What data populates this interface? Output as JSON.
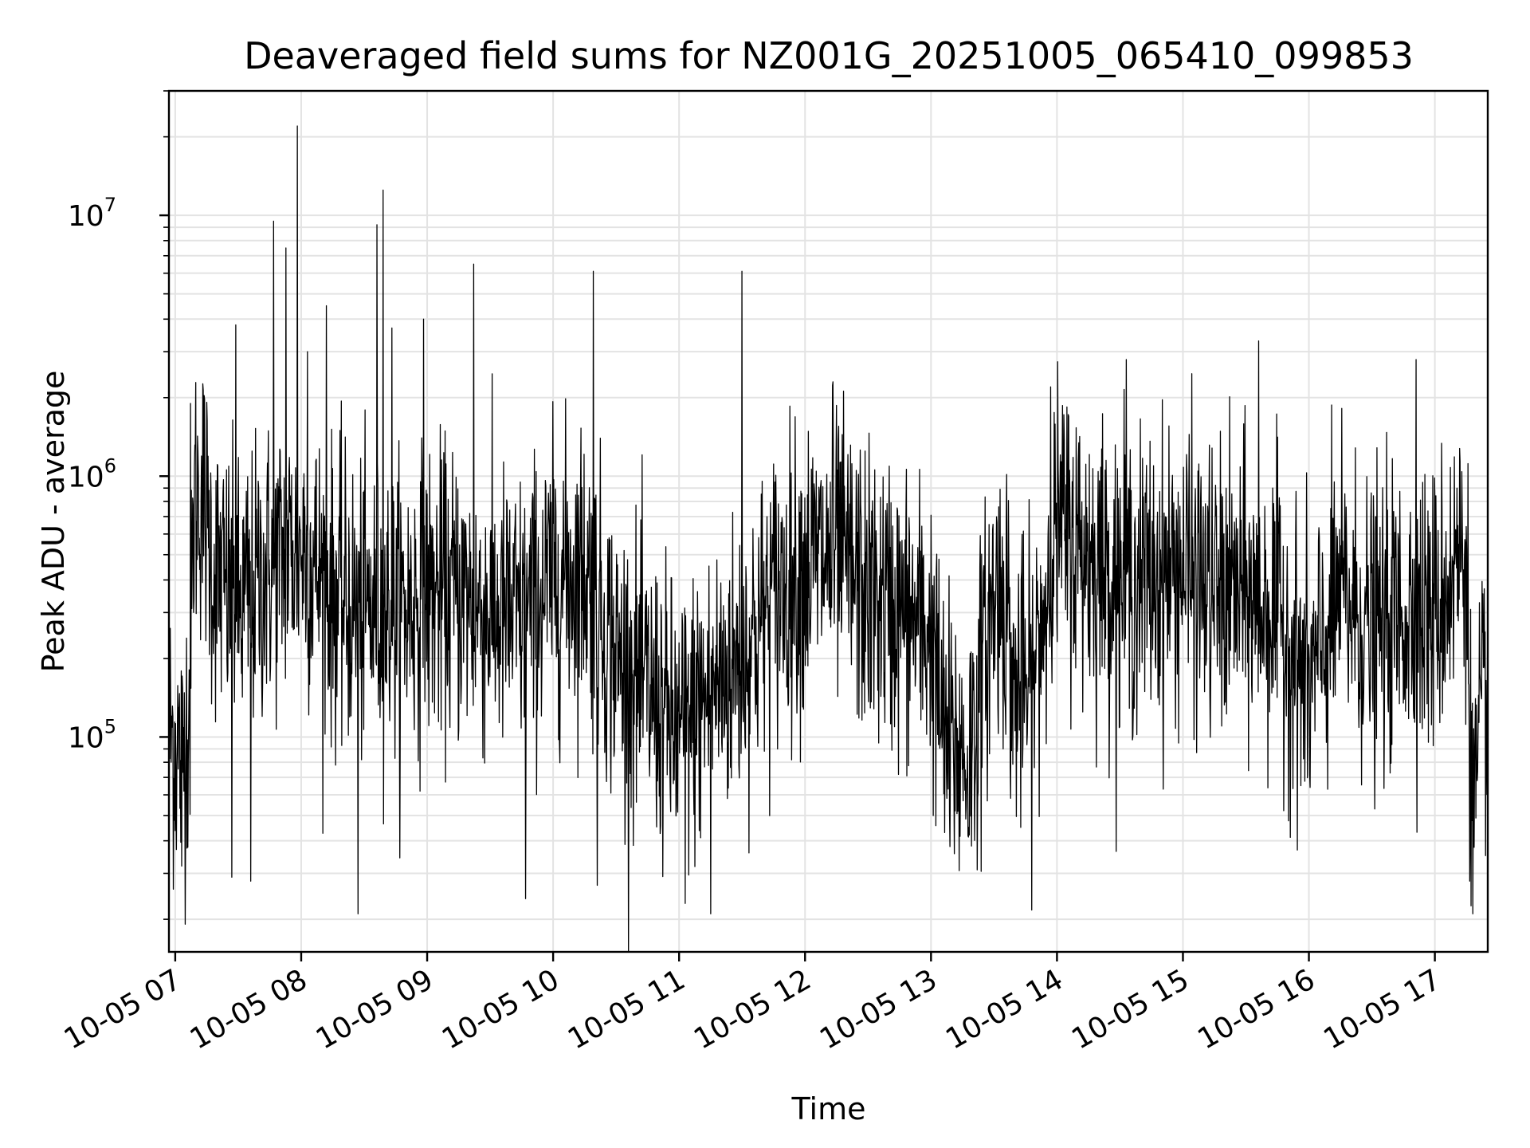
{
  "chart_data": {
    "type": "line",
    "title": "Deaveraged field sums for NZ001G_20251005_065410_099853",
    "xlabel": "Time",
    "ylabel": "Peak ADU - average",
    "yscale": "log",
    "ylim": [
      15000,
      30000000
    ],
    "xlim_hours": [
      6.95,
      17.42
    ],
    "grid": true,
    "line_color": "#000000",
    "x_ticks": [
      {
        "hour": 7,
        "label": "10-05 07"
      },
      {
        "hour": 8,
        "label": "10-05 08"
      },
      {
        "hour": 9,
        "label": "10-05 09"
      },
      {
        "hour": 10,
        "label": "10-05 10"
      },
      {
        "hour": 11,
        "label": "10-05 11"
      },
      {
        "hour": 12,
        "label": "10-05 12"
      },
      {
        "hour": 13,
        "label": "10-05 13"
      },
      {
        "hour": 14,
        "label": "10-05 14"
      },
      {
        "hour": 15,
        "label": "10-05 15"
      },
      {
        "hour": 16,
        "label": "10-05 16"
      },
      {
        "hour": 17,
        "label": "10-05 17"
      }
    ],
    "y_ticks": [
      {
        "value": 100000,
        "base": "10",
        "exp": "5"
      },
      {
        "value": 1000000,
        "base": "10",
        "exp": "6"
      },
      {
        "value": 10000000,
        "base": "10",
        "exp": "7"
      }
    ],
    "series": [
      {
        "name": "Peak ADU - average",
        "baseline": [
          [
            6.95,
            110000
          ],
          [
            7.05,
            80000
          ],
          [
            7.12,
            150000
          ],
          [
            7.15,
            850000
          ],
          [
            7.22,
            850000
          ],
          [
            7.3,
            450000
          ],
          [
            7.5,
            300000
          ],
          [
            7.75,
            450000
          ],
          [
            8.0,
            550000
          ],
          [
            8.25,
            350000
          ],
          [
            8.5,
            300000
          ],
          [
            8.75,
            300000
          ],
          [
            9.0,
            350000
          ],
          [
            9.25,
            350000
          ],
          [
            9.5,
            300000
          ],
          [
            9.75,
            280000
          ],
          [
            10.0,
            400000
          ],
          [
            10.25,
            450000
          ],
          [
            10.5,
            200000
          ],
          [
            10.75,
            150000
          ],
          [
            11.0,
            100000
          ],
          [
            11.25,
            150000
          ],
          [
            11.5,
            200000
          ],
          [
            11.75,
            350000
          ],
          [
            12.0,
            450000
          ],
          [
            12.25,
            500000
          ],
          [
            12.5,
            350000
          ],
          [
            12.75,
            300000
          ],
          [
            13.0,
            250000
          ],
          [
            13.1,
            100000
          ],
          [
            13.3,
            80000
          ],
          [
            13.5,
            350000
          ],
          [
            13.6,
            350000
          ],
          [
            13.65,
            150000
          ],
          [
            13.8,
            150000
          ],
          [
            14.0,
            650000
          ],
          [
            14.25,
            500000
          ],
          [
            14.5,
            400000
          ],
          [
            14.75,
            400000
          ],
          [
            15.0,
            450000
          ],
          [
            15.25,
            350000
          ],
          [
            15.5,
            350000
          ],
          [
            15.75,
            300000
          ],
          [
            16.0,
            150000
          ],
          [
            16.25,
            350000
          ],
          [
            16.5,
            250000
          ],
          [
            16.75,
            300000
          ],
          [
            17.0,
            300000
          ],
          [
            17.2,
            500000
          ],
          [
            17.25,
            500000
          ],
          [
            17.3,
            50000
          ],
          [
            17.35,
            80000
          ],
          [
            17.42,
            200000
          ]
        ],
        "peaks": [
          [
            7.12,
            1900000
          ],
          [
            7.48,
            3800000
          ],
          [
            7.78,
            9500000
          ],
          [
            7.88,
            7500000
          ],
          [
            7.97,
            22000000
          ],
          [
            8.05,
            3000000
          ],
          [
            8.2,
            4500000
          ],
          [
            8.6,
            9200000
          ],
          [
            8.65,
            12500000
          ],
          [
            8.72,
            3700000
          ],
          [
            8.97,
            4000000
          ],
          [
            9.37,
            6500000
          ],
          [
            10.32,
            6100000
          ],
          [
            11.5,
            6100000
          ],
          [
            12.22,
            2300000
          ],
          [
            13.95,
            2200000
          ],
          [
            14.55,
            2800000
          ],
          [
            15.6,
            3300000
          ],
          [
            16.85,
            2800000
          ]
        ],
        "troughs": [
          [
            7.05,
            32000
          ],
          [
            7.45,
            29000
          ],
          [
            7.6,
            28000
          ],
          [
            8.45,
            21000
          ],
          [
            9.78,
            24000
          ],
          [
            10.35,
            27000
          ],
          [
            11.05,
            23000
          ],
          [
            11.25,
            21000
          ],
          [
            13.15,
            38000
          ],
          [
            17.3,
            21000
          ]
        ]
      }
    ]
  }
}
